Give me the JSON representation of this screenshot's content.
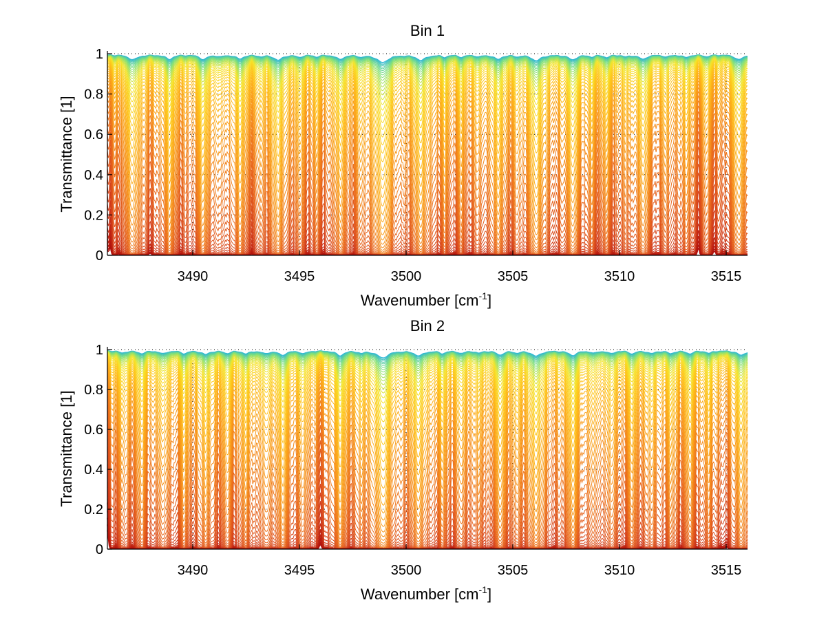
{
  "chart_data": [
    {
      "type": "line",
      "title": "Bin 1",
      "xlabel": "Wavenumber [cm",
      "xlabel_sup": "-1",
      "xlabel_suffix": "]",
      "ylabel": "Transmittance [1]",
      "xlim": [
        3486,
        3516
      ],
      "ylim": [
        0,
        1
      ],
      "xticks": [
        3490,
        3495,
        3500,
        3505,
        3510,
        3515
      ],
      "xtick_labels": [
        "3490",
        "3495",
        "3500",
        "3505",
        "3510",
        "3515"
      ],
      "yticks": [
        0,
        0.2,
        0.4,
        0.6,
        0.8,
        1
      ],
      "ytick_labels": [
        "0",
        "0.2",
        "0.4",
        "0.6",
        "0.8",
        "1"
      ],
      "grid": true,
      "n_series": 60,
      "colormap": [
        "#2bb6d6",
        "#7fe07a",
        "#f5e52a",
        "#ffc21a",
        "#f99a1a",
        "#ea6a1c",
        "#d4401c",
        "#b0100c"
      ],
      "absorption_lines": [
        {
          "center": 3487.2,
          "strength": 1.0,
          "width": 0.25
        },
        {
          "center": 3488.9,
          "strength": 0.9,
          "width": 0.2
        },
        {
          "center": 3490.5,
          "strength": 0.95,
          "width": 0.2
        },
        {
          "center": 3491.3,
          "strength": 0.3,
          "width": 0.15
        },
        {
          "center": 3492.2,
          "strength": 0.8,
          "width": 0.2
        },
        {
          "center": 3493.2,
          "strength": 0.3,
          "width": 0.15
        },
        {
          "center": 3494.0,
          "strength": 1.1,
          "width": 0.22
        },
        {
          "center": 3495.0,
          "strength": 0.45,
          "width": 0.15
        },
        {
          "center": 3495.8,
          "strength": 0.35,
          "width": 0.15
        },
        {
          "center": 3496.9,
          "strength": 0.9,
          "width": 0.2
        },
        {
          "center": 3497.9,
          "strength": 0.35,
          "width": 0.15
        },
        {
          "center": 3498.9,
          "strength": 1.6,
          "width": 0.3
        },
        {
          "center": 3500.7,
          "strength": 1.1,
          "width": 0.25
        },
        {
          "center": 3501.8,
          "strength": 0.4,
          "width": 0.15
        },
        {
          "center": 3502.6,
          "strength": 0.45,
          "width": 0.15
        },
        {
          "center": 3503.4,
          "strength": 0.35,
          "width": 0.15
        },
        {
          "center": 3504.3,
          "strength": 0.9,
          "width": 0.2
        },
        {
          "center": 3505.2,
          "strength": 0.3,
          "width": 0.15
        },
        {
          "center": 3506.1,
          "strength": 1.2,
          "width": 0.25
        },
        {
          "center": 3507.8,
          "strength": 1.0,
          "width": 0.22
        },
        {
          "center": 3508.7,
          "strength": 0.35,
          "width": 0.15
        },
        {
          "center": 3509.4,
          "strength": 0.5,
          "width": 0.15
        },
        {
          "center": 3510.3,
          "strength": 0.35,
          "width": 0.15
        },
        {
          "center": 3511.1,
          "strength": 0.9,
          "width": 0.2
        },
        {
          "center": 3512.2,
          "strength": 0.4,
          "width": 0.15
        },
        {
          "center": 3513.1,
          "strength": 0.5,
          "width": 0.18
        },
        {
          "center": 3514.1,
          "strength": 0.35,
          "width": 0.15
        },
        {
          "center": 3515.6,
          "strength": 1.0,
          "width": 0.22
        }
      ]
    },
    {
      "type": "line",
      "title": "Bin 2",
      "xlabel": "Wavenumber [cm",
      "xlabel_sup": "-1",
      "xlabel_suffix": "]",
      "ylabel": "Transmittance [1]",
      "xlim": [
        3486,
        3516
      ],
      "ylim": [
        0,
        1
      ],
      "xticks": [
        3490,
        3495,
        3500,
        3505,
        3510,
        3515
      ],
      "xtick_labels": [
        "3490",
        "3495",
        "3500",
        "3505",
        "3510",
        "3515"
      ],
      "yticks": [
        0,
        0.2,
        0.4,
        0.6,
        0.8,
        1
      ],
      "ytick_labels": [
        "0",
        "0.2",
        "0.4",
        "0.6",
        "0.8",
        "1"
      ],
      "grid": true,
      "n_series": 60,
      "colormap": [
        "#2bb6d6",
        "#7fe07a",
        "#f5e52a",
        "#ffc21a",
        "#f99a1a",
        "#ea6a1c",
        "#d4401c",
        "#b0100c"
      ],
      "absorption_lines": [
        {
          "center": 3486.7,
          "strength": 0.45,
          "width": 0.18
        },
        {
          "center": 3487.6,
          "strength": 0.55,
          "width": 0.2
        },
        {
          "center": 3488.6,
          "strength": 0.6,
          "width": 0.18
        },
        {
          "center": 3489.6,
          "strength": 0.55,
          "width": 0.18
        },
        {
          "center": 3490.6,
          "strength": 0.75,
          "width": 0.2
        },
        {
          "center": 3491.6,
          "strength": 0.5,
          "width": 0.18
        },
        {
          "center": 3492.5,
          "strength": 0.6,
          "width": 0.18
        },
        {
          "center": 3493.4,
          "strength": 0.55,
          "width": 0.18
        },
        {
          "center": 3494.2,
          "strength": 0.9,
          "width": 0.2
        },
        {
          "center": 3495.2,
          "strength": 0.55,
          "width": 0.18
        },
        {
          "center": 3496.9,
          "strength": 1.0,
          "width": 0.2
        },
        {
          "center": 3497.9,
          "strength": 0.4,
          "width": 0.15
        },
        {
          "center": 3498.9,
          "strength": 1.5,
          "width": 0.3
        },
        {
          "center": 3500.6,
          "strength": 1.0,
          "width": 0.25
        },
        {
          "center": 3501.7,
          "strength": 0.5,
          "width": 0.18
        },
        {
          "center": 3502.6,
          "strength": 0.5,
          "width": 0.18
        },
        {
          "center": 3503.4,
          "strength": 0.45,
          "width": 0.15
        },
        {
          "center": 3504.4,
          "strength": 0.85,
          "width": 0.2
        },
        {
          "center": 3505.2,
          "strength": 0.4,
          "width": 0.15
        },
        {
          "center": 3506.1,
          "strength": 1.1,
          "width": 0.25
        },
        {
          "center": 3507.8,
          "strength": 0.95,
          "width": 0.22
        },
        {
          "center": 3508.8,
          "strength": 0.45,
          "width": 0.15
        },
        {
          "center": 3509.6,
          "strength": 0.55,
          "width": 0.18
        },
        {
          "center": 3510.6,
          "strength": 0.6,
          "width": 0.18
        },
        {
          "center": 3511.5,
          "strength": 0.55,
          "width": 0.18
        },
        {
          "center": 3512.4,
          "strength": 0.55,
          "width": 0.18
        },
        {
          "center": 3513.3,
          "strength": 0.6,
          "width": 0.18
        },
        {
          "center": 3514.2,
          "strength": 0.5,
          "width": 0.15
        },
        {
          "center": 3515.7,
          "strength": 0.95,
          "width": 0.22
        }
      ]
    }
  ]
}
